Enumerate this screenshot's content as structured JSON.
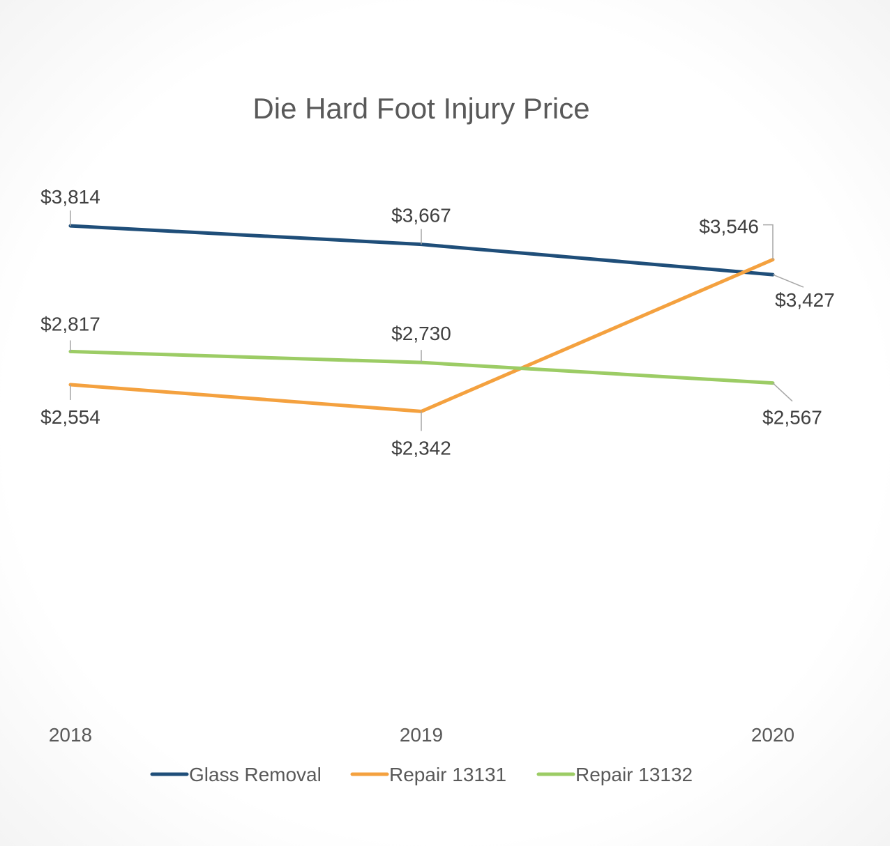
{
  "chart_data": {
    "type": "line",
    "title": "Die Hard Foot Injury Price",
    "xlabel": "",
    "ylabel": "",
    "categories": [
      "2018",
      "2019",
      "2020"
    ],
    "ylim": [
      0,
      4500
    ],
    "grid": false,
    "legend": "bottom",
    "series": [
      {
        "name": "Glass Removal",
        "color": "#1f4e79",
        "values": [
          3814,
          3667,
          3427
        ],
        "labels": [
          "$3,814",
          "$3,667",
          "$3,427"
        ]
      },
      {
        "name": "Repair 13131",
        "color": "#f4a13f",
        "values": [
          2554,
          2342,
          3546
        ],
        "labels": [
          "$2,554",
          "$2,342",
          "$3,546"
        ]
      },
      {
        "name": "Repair 13132",
        "color": "#9ccc65",
        "values": [
          2817,
          2730,
          2567
        ],
        "labels": [
          "$2,817",
          "$2,730",
          "$2,567"
        ]
      }
    ]
  }
}
